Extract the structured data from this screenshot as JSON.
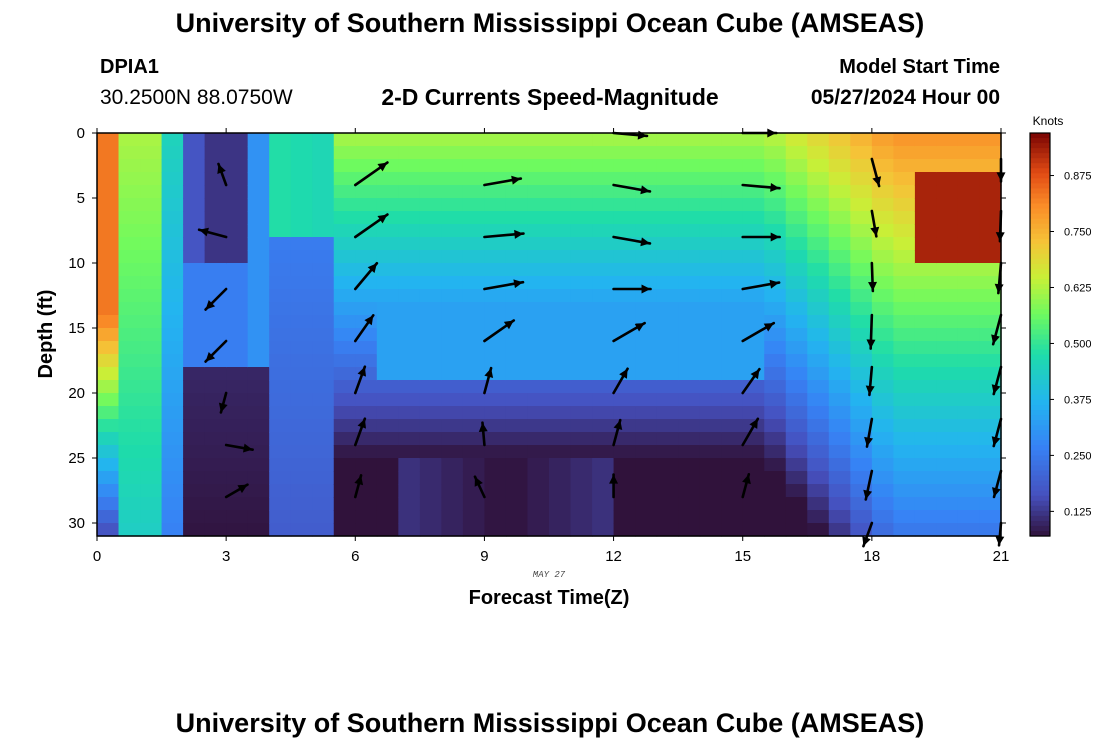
{
  "header": {
    "title": "University of Southern Mississippi Ocean Cube (AMSEAS)",
    "station_id": "DPIA1",
    "station_location": "30.2500N  88.0750W",
    "subtitle": "2-D Currents Speed-Magnitude",
    "model_start_label": "Model Start Time",
    "model_start_value": "05/27/2024 Hour 00"
  },
  "footer": {
    "title": "University of Southern Mississippi Ocean Cube (AMSEAS)"
  },
  "chart_data": {
    "type": "heatmap",
    "title": "2-D Currents Speed-Magnitude",
    "xlabel": "Forecast Time(Z)",
    "ylabel": "Depth (ft)",
    "date_label": "MAY 27",
    "xlim": [
      0,
      21
    ],
    "ylim": [
      0,
      31
    ],
    "x_ticks": [
      0,
      3,
      6,
      9,
      12,
      15,
      18,
      21
    ],
    "y_ticks": [
      0,
      5,
      10,
      15,
      20,
      25,
      30
    ],
    "colorbar": {
      "label": "Knots",
      "min": 0.07,
      "max": 0.97,
      "ticks": [
        "0.125",
        "0.250",
        "0.375",
        "0.500",
        "0.625",
        "0.750",
        "0.875"
      ],
      "tick_values": [
        0.125,
        0.25,
        0.375,
        0.5,
        0.625,
        0.75,
        0.875
      ]
    },
    "arrow_length_knots_unit": 0.5,
    "arrows": [
      {
        "t": 3,
        "depth": 4,
        "dir": 340,
        "speed": 0.2
      },
      {
        "t": 3,
        "depth": 8,
        "dir": 285,
        "speed": 0.25
      },
      {
        "t": 3,
        "depth": 12,
        "dir": 225,
        "speed": 0.26
      },
      {
        "t": 3,
        "depth": 16,
        "dir": 225,
        "speed": 0.26
      },
      {
        "t": 3,
        "depth": 20,
        "dir": 195,
        "speed": 0.18
      },
      {
        "t": 3,
        "depth": 24,
        "dir": 100,
        "speed": 0.24
      },
      {
        "t": 3,
        "depth": 28,
        "dir": 60,
        "speed": 0.22
      },
      {
        "t": 6,
        "depth": 4,
        "dir": 55,
        "speed": 0.35
      },
      {
        "t": 6,
        "depth": 8,
        "dir": 55,
        "speed": 0.35
      },
      {
        "t": 6,
        "depth": 12,
        "dir": 40,
        "speed": 0.3
      },
      {
        "t": 6,
        "depth": 16,
        "dir": 35,
        "speed": 0.28
      },
      {
        "t": 6,
        "depth": 20,
        "dir": 20,
        "speed": 0.25
      },
      {
        "t": 6,
        "depth": 24,
        "dir": 20,
        "speed": 0.25
      },
      {
        "t": 6,
        "depth": 28,
        "dir": 15,
        "speed": 0.2
      },
      {
        "t": 9,
        "depth": 4,
        "dir": 80,
        "speed": 0.33
      },
      {
        "t": 9,
        "depth": 8,
        "dir": 85,
        "speed": 0.35
      },
      {
        "t": 9,
        "depth": 12,
        "dir": 80,
        "speed": 0.35
      },
      {
        "t": 9,
        "depth": 16,
        "dir": 55,
        "speed": 0.32
      },
      {
        "t": 9,
        "depth": 20,
        "dir": 15,
        "speed": 0.23
      },
      {
        "t": 9,
        "depth": 24,
        "dir": 355,
        "speed": 0.2
      },
      {
        "t": 9,
        "depth": 28,
        "dir": 335,
        "speed": 0.2
      },
      {
        "t": 12,
        "depth": 0,
        "dir": 95,
        "speed": 0.3
      },
      {
        "t": 12,
        "depth": 4,
        "dir": 100,
        "speed": 0.33
      },
      {
        "t": 12,
        "depth": 8,
        "dir": 100,
        "speed": 0.33
      },
      {
        "t": 12,
        "depth": 12,
        "dir": 90,
        "speed": 0.33
      },
      {
        "t": 12,
        "depth": 16,
        "dir": 60,
        "speed": 0.32
      },
      {
        "t": 12,
        "depth": 20,
        "dir": 30,
        "speed": 0.25
      },
      {
        "t": 12,
        "depth": 24,
        "dir": 15,
        "speed": 0.23
      },
      {
        "t": 12,
        "depth": 28,
        "dir": 0,
        "speed": 0.2
      },
      {
        "t": 15,
        "depth": 0,
        "dir": 90,
        "speed": 0.3
      },
      {
        "t": 15,
        "depth": 4,
        "dir": 95,
        "speed": 0.33
      },
      {
        "t": 15,
        "depth": 8,
        "dir": 90,
        "speed": 0.33
      },
      {
        "t": 15,
        "depth": 12,
        "dir": 80,
        "speed": 0.33
      },
      {
        "t": 15,
        "depth": 16,
        "dir": 60,
        "speed": 0.32
      },
      {
        "t": 15,
        "depth": 20,
        "dir": 35,
        "speed": 0.26
      },
      {
        "t": 15,
        "depth": 24,
        "dir": 30,
        "speed": 0.27
      },
      {
        "t": 15,
        "depth": 28,
        "dir": 15,
        "speed": 0.21
      },
      {
        "t": 18,
        "depth": 2,
        "dir": 165,
        "speed": 0.25
      },
      {
        "t": 18,
        "depth": 6,
        "dir": 170,
        "speed": 0.23
      },
      {
        "t": 18,
        "depth": 10,
        "dir": 178,
        "speed": 0.25
      },
      {
        "t": 18,
        "depth": 14,
        "dir": 182,
        "speed": 0.3
      },
      {
        "t": 18,
        "depth": 18,
        "dir": 185,
        "speed": 0.25
      },
      {
        "t": 18,
        "depth": 22,
        "dir": 190,
        "speed": 0.25
      },
      {
        "t": 18,
        "depth": 26,
        "dir": 192,
        "speed": 0.26
      },
      {
        "t": 18,
        "depth": 30,
        "dir": 200,
        "speed": 0.22
      },
      {
        "t": 21,
        "depth": 2,
        "dir": 180,
        "speed": 0.2
      },
      {
        "t": 21,
        "depth": 6,
        "dir": 182,
        "speed": 0.27
      },
      {
        "t": 21,
        "depth": 10,
        "dir": 185,
        "speed": 0.27
      },
      {
        "t": 21,
        "depth": 14,
        "dir": 195,
        "speed": 0.27
      },
      {
        "t": 21,
        "depth": 18,
        "dir": 195,
        "speed": 0.25
      },
      {
        "t": 21,
        "depth": 22,
        "dir": 195,
        "speed": 0.25
      },
      {
        "t": 21,
        "depth": 26,
        "dir": 195,
        "speed": 0.24
      },
      {
        "t": 21,
        "depth": 30,
        "dir": 185,
        "speed": 0.2
      }
    ]
  }
}
